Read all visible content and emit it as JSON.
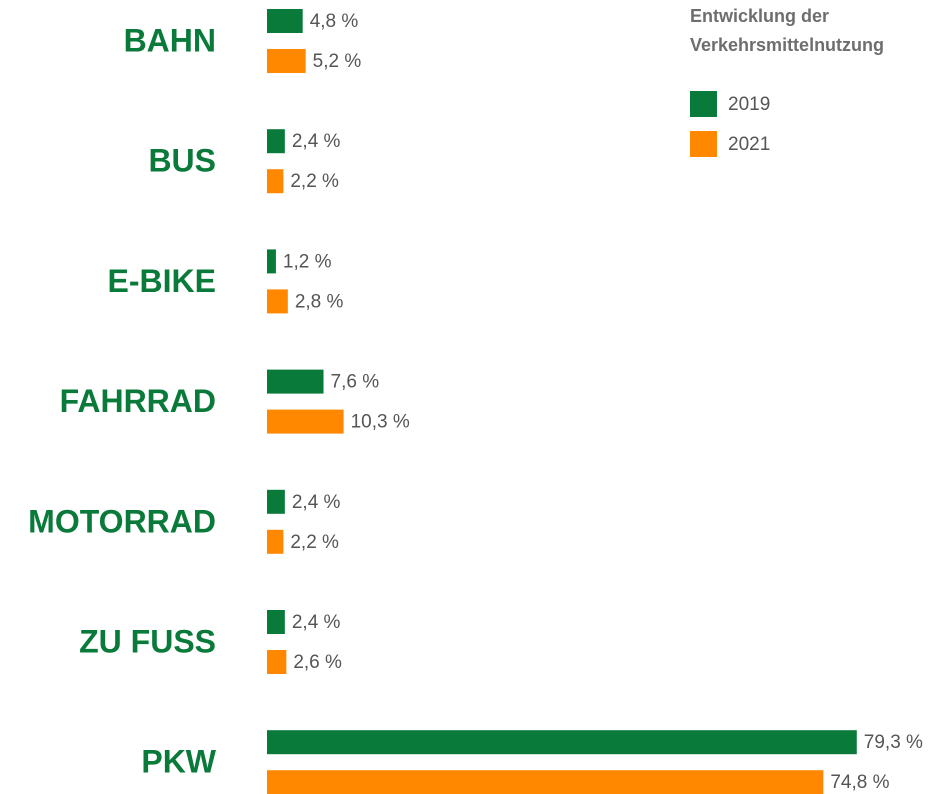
{
  "chart_data": {
    "type": "hbar",
    "title": "Entwicklung der Verkehrsmittelnutzung",
    "categories": [
      "BAHN",
      "BUS",
      "E-BIKE",
      "FAHRRAD",
      "MOTORRAD",
      "ZU FUSS",
      "PKW"
    ],
    "series": [
      {
        "name": "2019",
        "color": "#0a7a3a",
        "values": [
          4.8,
          2.4,
          1.2,
          7.6,
          2.4,
          2.4,
          79.3
        ],
        "value_labels": [
          "4,8 %",
          "2,4 %",
          "1,2 %",
          "7,6 %",
          "2,4 %",
          "2,4 %",
          "79,3 %"
        ]
      },
      {
        "name": "2021",
        "color": "#ff8800",
        "values": [
          5.2,
          2.2,
          2.8,
          10.3,
          2.2,
          2.6,
          74.8
        ],
        "value_labels": [
          "5,2 %",
          "2,2 %",
          "2,8 %",
          "10,3 %",
          "2,2 %",
          "2,6 %",
          "74,8 %"
        ]
      }
    ],
    "xlim": [
      0,
      80
    ],
    "legend": "top-right"
  }
}
